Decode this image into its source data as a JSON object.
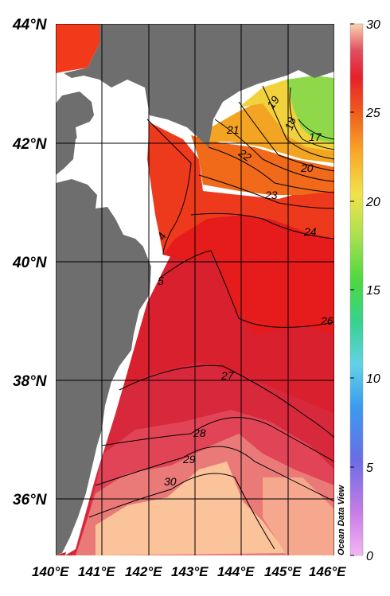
{
  "map": {
    "lat_ticks": [
      "44°N",
      "42°N",
      "40°N",
      "38°N",
      "36°N"
    ],
    "lon_ticks": [
      "140°E",
      "141°E",
      "142°E",
      "143°E",
      "144°E",
      "145°E",
      "146°E"
    ],
    "contour_labels": [
      "17",
      "18",
      "19",
      "20",
      "21",
      "22",
      "23",
      "24",
      "26",
      "27",
      "28",
      "29",
      "30",
      "4",
      "5"
    ],
    "watermark": "Ocean Data View",
    "land_color": "#6e6e6e"
  },
  "colorbar": {
    "ticks": [
      "30",
      "25",
      "20",
      "15",
      "10",
      "5",
      "0"
    ],
    "min": 0,
    "max": 30
  }
}
